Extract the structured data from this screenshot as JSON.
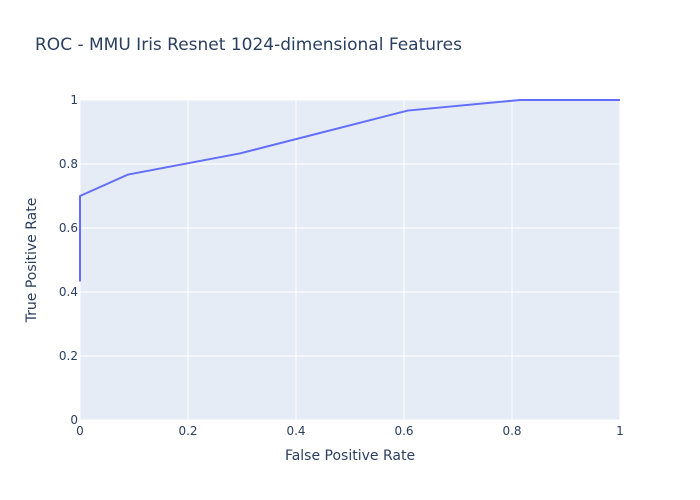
{
  "chart_data": {
    "type": "line",
    "title": "ROC - MMU Iris Resnet 1024-dimensional Features",
    "xlabel": "False Positive Rate",
    "ylabel": "True Positive Rate",
    "xlim": [
      0,
      1
    ],
    "ylim": [
      0,
      1
    ],
    "grid": true,
    "legend": "none",
    "x_ticks": [
      0,
      0.2,
      0.4,
      0.6,
      0.8,
      1
    ],
    "y_ticks": [
      0,
      0.2,
      0.4,
      0.6,
      0.8,
      1
    ],
    "x_tick_labels": [
      "0",
      "0.2",
      "0.4",
      "0.6",
      "0.8",
      "1"
    ],
    "y_tick_labels": [
      "0",
      "0.2",
      "0.4",
      "0.6",
      "0.8",
      "1"
    ],
    "series": [
      {
        "color": "#636efa",
        "x": [
          0,
          0,
          0.089,
          0.296,
          0.607,
          0.815,
          1.0
        ],
        "y": [
          0.433,
          0.7,
          0.767,
          0.833,
          0.967,
          1.0,
          1.0
        ]
      }
    ],
    "colors": {
      "plot_bg": "#e5ecf6",
      "grid": "#ffffff",
      "text": "#2a3f5f"
    }
  }
}
